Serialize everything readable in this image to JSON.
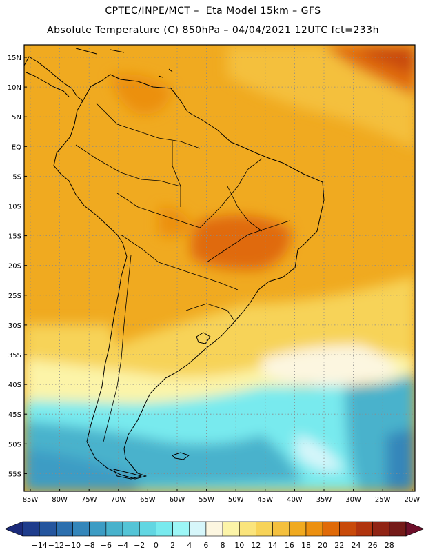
{
  "header": {
    "line1": "CPTEC/INPE/MCT –  Eta Model 15km – GFS",
    "line2": "Absolute Temperature (C) 850hPa – 04/04/2021 12UTC fct=233h"
  },
  "map": {
    "lat_labels": [
      "15N",
      "10N",
      "5N",
      "EQ",
      "5S",
      "10S",
      "15S",
      "20S",
      "25S",
      "30S",
      "35S",
      "40S",
      "45S",
      "50S",
      "55S"
    ],
    "lon_labels": [
      "85W",
      "80W",
      "75W",
      "70W",
      "65W",
      "60W",
      "55W",
      "50W",
      "45W",
      "40W",
      "35W",
      "30W",
      "25W",
      "20W"
    ],
    "grid": "dotted"
  },
  "colorbar": {
    "labels": [
      "-14",
      "-12",
      "-10",
      "-8",
      "-6",
      "-4",
      "-2",
      "0",
      "2",
      "4",
      "6",
      "8",
      "10",
      "12",
      "14",
      "16",
      "18",
      "20",
      "22",
      "24",
      "26",
      "28"
    ],
    "colors": [
      "#1e3c8c",
      "#24559e",
      "#2c6fae",
      "#3486ba",
      "#3c9cc4",
      "#48b2cc",
      "#54c4d6",
      "#62d6e2",
      "#78eaee",
      "#9cf6f6",
      "#d6f6fa",
      "#fcf6e0",
      "#fcf4a8",
      "#fae47c",
      "#f7d358",
      "#f4c03e",
      "#f0aa20",
      "#ec9010",
      "#e06a08",
      "#c84a0a",
      "#b0340e",
      "#902414",
      "#741a18"
    ]
  }
}
